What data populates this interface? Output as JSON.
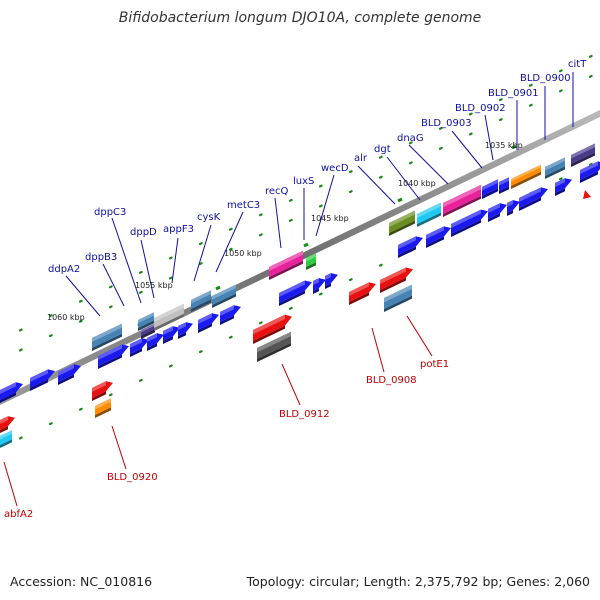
{
  "title": "Bifidobacterium longum DJO10A, complete genome",
  "footer": {
    "accession": "Accession: NC_010816",
    "summary": "Topology: circular; Length: 2,375,792 bp; Genes: 2,060"
  },
  "ticks": [
    "1035 kbp",
    "1040 kbp",
    "1045 kbp",
    "1050 kbp",
    "1055 kbp",
    "1060 kbp"
  ],
  "labels_top": [
    "citT",
    "BLD_0900",
    "BLD_0901",
    "BLD_0902",
    "BLD_0903",
    "dnaG",
    "dgt",
    "alr",
    "wecD",
    "luxS",
    "recQ",
    "metC3",
    "cysK",
    "appF3",
    "dppD",
    "dppC3",
    "dppB3",
    "ddpA2"
  ],
  "labels_bottom": [
    "potE1",
    "BLD_0908",
    "BLD_0912",
    "BLD_0920",
    "abfA2"
  ],
  "colors": {
    "top_label": "#1010a0",
    "bottom_label": "#c00000",
    "cds_forward": "#1a1af0",
    "steelblue": "#4682b4",
    "magenta": "#e8229a",
    "cyan": "#1ec8f0",
    "olive": "#6b8e23",
    "orange": "#ff8c00",
    "purple": "#4a3a8a",
    "green": "#2ecc40",
    "silver": "#c0c0c0",
    "red": "#e81010",
    "gray": "#555555"
  }
}
